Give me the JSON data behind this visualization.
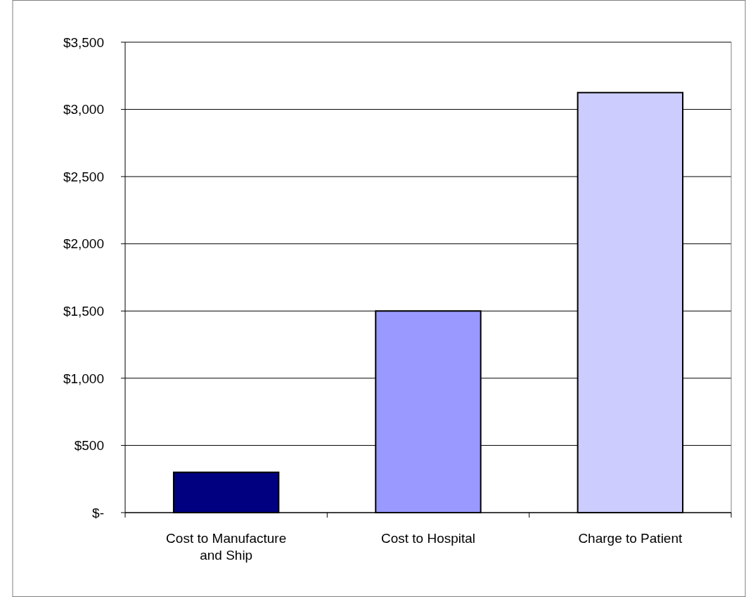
{
  "chart_data": {
    "type": "bar",
    "categories": [
      "Cost to Manufacture and Ship",
      "Cost to Hospital",
      "Charge to Patient"
    ],
    "values": [
      300,
      1500,
      3125
    ],
    "colors": [
      "#000080",
      "#9999ff",
      "#ccccff"
    ],
    "ylim": [
      0,
      3500
    ],
    "yticks": [
      {
        "value": 0,
        "label": "$-"
      },
      {
        "value": 500,
        "label": "$500"
      },
      {
        "value": 1000,
        "label": "$1,000"
      },
      {
        "value": 1500,
        "label": "$1,500"
      },
      {
        "value": 2000,
        "label": "$2,000"
      },
      {
        "value": 2500,
        "label": "$2,500"
      },
      {
        "value": 3000,
        "label": "$3,000"
      },
      {
        "value": 3500,
        "label": "$3,500"
      }
    ],
    "grid": "y"
  }
}
